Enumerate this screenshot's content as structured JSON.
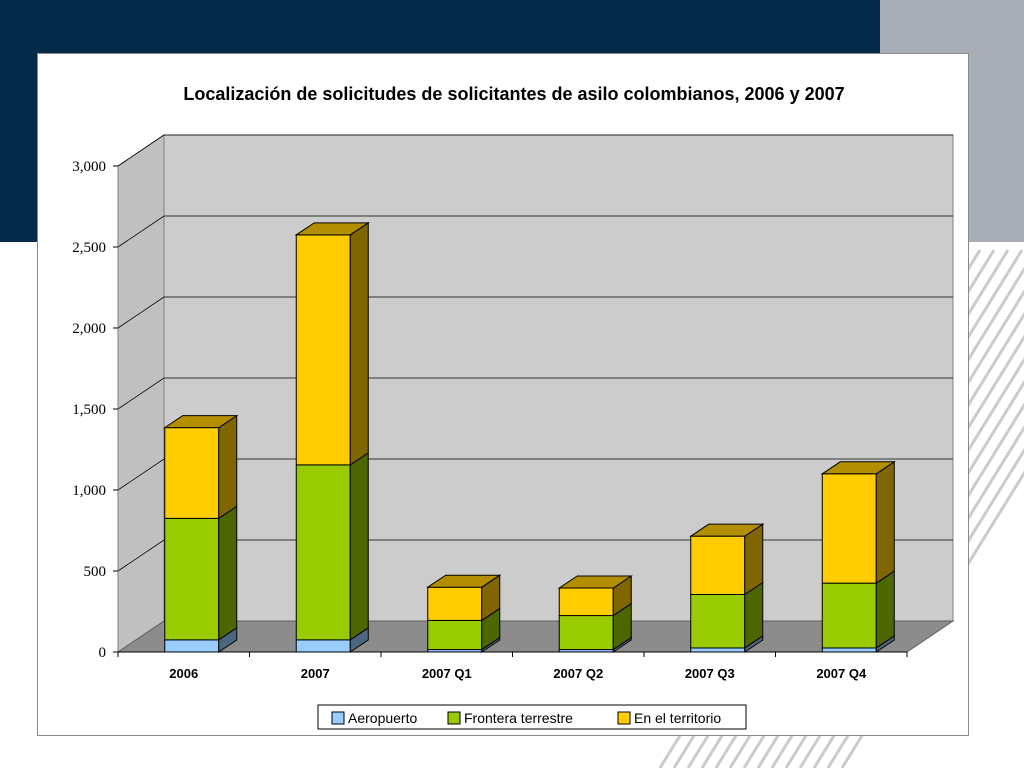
{
  "background": {
    "navy": "#032a47",
    "gray": "#a9adb5"
  },
  "chart_data": {
    "type": "bar",
    "stacked": true,
    "three_d": true,
    "title": "Localización de solicitudes de solicitantes de asilo colombianos, 2006 y 2007",
    "xlabel": "",
    "ylabel": "",
    "ylim": [
      0,
      3000
    ],
    "yticks": [
      0,
      500,
      1000,
      1500,
      2000,
      2500,
      3000
    ],
    "ytick_labels": [
      "0",
      "500",
      "1,000",
      "1,500",
      "2,000",
      "2,500",
      "3,000"
    ],
    "categories": [
      "2006",
      "2007",
      "2007 Q1",
      "2007 Q2",
      "2007 Q3",
      "2007 Q4"
    ],
    "series": [
      {
        "name": "Aeropuerto",
        "color": "#99ccff",
        "values": [
          75,
          75,
          15,
          15,
          25,
          25
        ]
      },
      {
        "name": "Frontera terrestre",
        "color": "#99cc00",
        "values": [
          750,
          1080,
          180,
          210,
          330,
          400
        ]
      },
      {
        "name": "En el territorio",
        "color": "#ffcc00",
        "values": [
          560,
          1420,
          205,
          170,
          360,
          675
        ]
      }
    ],
    "grid": true,
    "legend_position": "bottom"
  }
}
